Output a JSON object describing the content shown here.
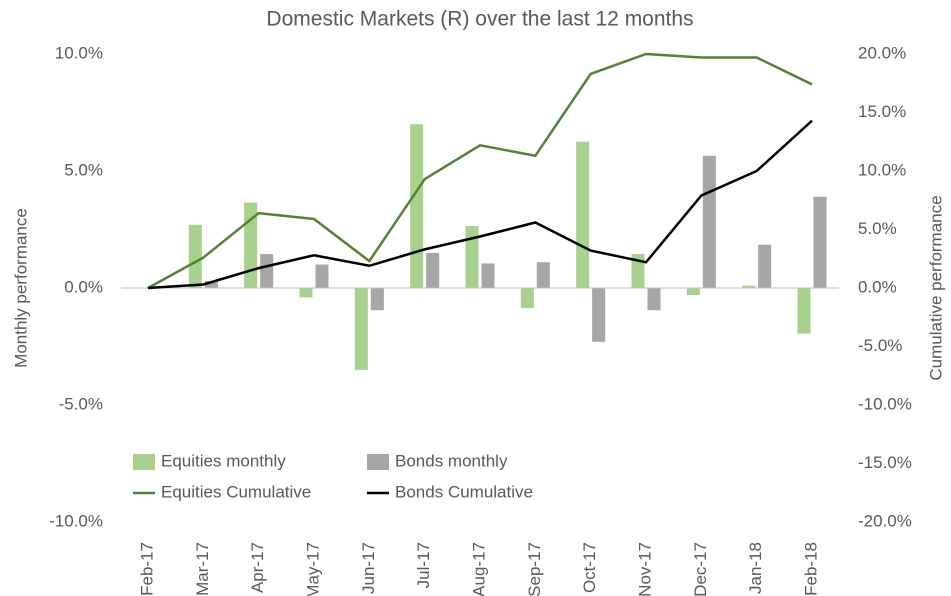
{
  "chart_data": {
    "type": "bar-line",
    "title": "Domestic Markets (R) over the last 12 months",
    "y_label": "Monthly performance",
    "y2_label": "Cumulative performance",
    "categories": [
      "Feb-17",
      "Mar-17",
      "Apr-17",
      "May-17",
      "Jun-17",
      "Jul-17",
      "Aug-17",
      "Sep-17",
      "Oct-17",
      "Nov-17",
      "Dec-17",
      "Jan-18",
      "Feb-18"
    ],
    "ylim": [
      -10,
      10
    ],
    "yticks": [
      {
        "value": -10,
        "label": "-10.0%"
      },
      {
        "value": -5,
        "label": "-5.0%"
      },
      {
        "value": 0,
        "label": "0.0%"
      },
      {
        "value": 5,
        "label": "5.0%"
      },
      {
        "value": 10,
        "label": "10.0%"
      }
    ],
    "y2lim": [
      -20,
      20
    ],
    "y2ticks": [
      {
        "value": -20,
        "label": "-20.0%"
      },
      {
        "value": -15,
        "label": "-15.0%"
      },
      {
        "value": -10,
        "label": "-10.0%"
      },
      {
        "value": -5,
        "label": "-5.0%"
      },
      {
        "value": 0,
        "label": "0.0%"
      },
      {
        "value": 5,
        "label": "5.0%"
      },
      {
        "value": 10,
        "label": "10.0%"
      },
      {
        "value": 15,
        "label": "15.0%"
      },
      {
        "value": 20,
        "label": "20.0%"
      }
    ],
    "legend": "lower left",
    "series": [
      {
        "name": "Equities monthly",
        "kind": "bar",
        "color": "#a9d18e",
        "values": [
          0,
          2.7,
          3.65,
          -0.4,
          -3.5,
          7.0,
          2.65,
          -0.85,
          6.25,
          1.45,
          -0.3,
          0.1,
          -1.95
        ]
      },
      {
        "name": "Bonds monthly",
        "kind": "bar",
        "color": "#a6a6a6",
        "values": [
          0,
          0.3,
          1.45,
          1.0,
          -0.95,
          1.5,
          1.05,
          1.1,
          -2.3,
          -0.95,
          5.65,
          1.85,
          3.9
        ]
      },
      {
        "name": "Equities Cumulative",
        "kind": "line",
        "axis": "y2",
        "color": "#548235",
        "values": [
          0,
          2.6,
          6.4,
          5.9,
          2.3,
          9.3,
          12.2,
          11.3,
          18.3,
          20.0,
          19.7,
          19.7,
          17.4
        ]
      },
      {
        "name": "Bonds Cumulative",
        "kind": "line",
        "axis": "y2",
        "color": "#000000",
        "values": [
          0,
          0.3,
          1.7,
          2.8,
          1.9,
          3.3,
          4.4,
          5.6,
          3.2,
          2.2,
          7.9,
          10.0,
          14.3
        ]
      }
    ]
  }
}
